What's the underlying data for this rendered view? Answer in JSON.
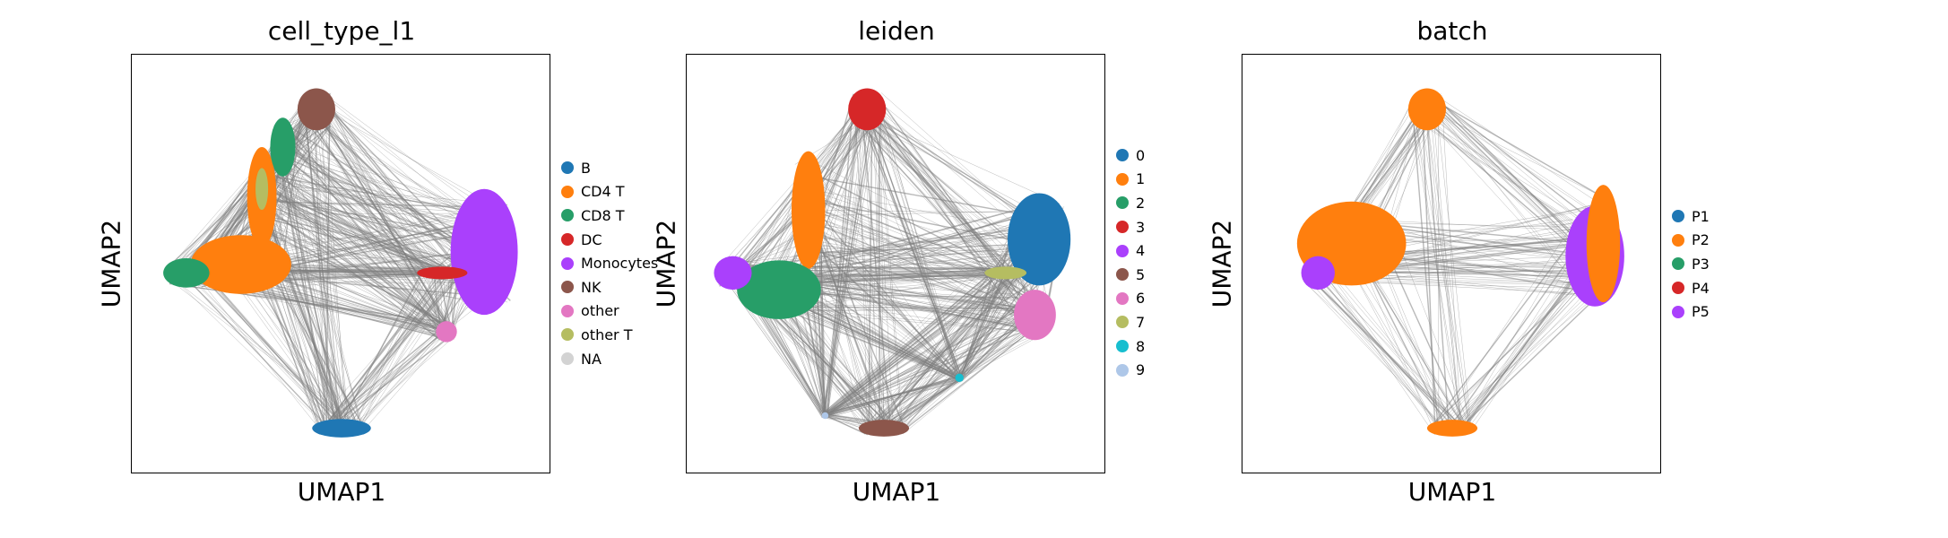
{
  "chart_data": [
    {
      "type": "scatter",
      "title": "cell_type_l1",
      "xlabel": "UMAP1",
      "ylabel": "UMAP2",
      "grid": false,
      "legend_position": "right",
      "categories": [
        "B",
        "CD4 T",
        "CD8 T",
        "DC",
        "Monocytes",
        "NK",
        "other",
        "other T",
        "NA"
      ],
      "colors": [
        "#1f77b4",
        "#ff7f0e",
        "#279e68",
        "#d62728",
        "#aa40fc",
        "#8c564b",
        "#e377c2",
        "#b5bd61",
        "#d3d3d3"
      ],
      "clusters": [
        {
          "name": "B",
          "x": 0.5,
          "y": 0.11,
          "rx": 0.07,
          "ry": 0.022,
          "color": "#1f77b4"
        },
        {
          "name": "NK",
          "x": 0.44,
          "y": 0.87,
          "rx": 0.045,
          "ry": 0.05,
          "color": "#8c564b"
        },
        {
          "name": "CD4 T",
          "x": 0.26,
          "y": 0.5,
          "rx": 0.12,
          "ry": 0.07,
          "color": "#ff7f0e"
        },
        {
          "name": "CD4 T",
          "x": 0.31,
          "y": 0.66,
          "rx": 0.035,
          "ry": 0.12,
          "color": "#ff7f0e"
        },
        {
          "name": "CD8 T",
          "x": 0.13,
          "y": 0.48,
          "rx": 0.055,
          "ry": 0.035,
          "color": "#279e68"
        },
        {
          "name": "CD8 T",
          "x": 0.36,
          "y": 0.78,
          "rx": 0.03,
          "ry": 0.07,
          "color": "#279e68"
        },
        {
          "name": "other T",
          "x": 0.31,
          "y": 0.68,
          "rx": 0.015,
          "ry": 0.05,
          "color": "#b5bd61"
        },
        {
          "name": "Monocytes",
          "x": 0.84,
          "y": 0.53,
          "rx": 0.08,
          "ry": 0.15,
          "color": "#aa40fc"
        },
        {
          "name": "DC",
          "x": 0.74,
          "y": 0.48,
          "rx": 0.06,
          "ry": 0.015,
          "color": "#d62728"
        },
        {
          "name": "other",
          "x": 0.75,
          "y": 0.34,
          "rx": 0.025,
          "ry": 0.025,
          "color": "#e377c2"
        }
      ]
    },
    {
      "type": "scatter",
      "title": "leiden",
      "xlabel": "UMAP1",
      "ylabel": "UMAP2",
      "grid": false,
      "legend_position": "right",
      "categories": [
        "0",
        "1",
        "2",
        "3",
        "4",
        "5",
        "6",
        "7",
        "8",
        "9"
      ],
      "colors": [
        "#1f77b4",
        "#ff7f0e",
        "#279e68",
        "#d62728",
        "#aa40fc",
        "#8c564b",
        "#e377c2",
        "#b5bd61",
        "#17becf",
        "#aec7e8"
      ],
      "clusters": [
        {
          "name": "0",
          "x": 0.84,
          "y": 0.56,
          "rx": 0.075,
          "ry": 0.11,
          "color": "#1f77b4"
        },
        {
          "name": "1",
          "x": 0.29,
          "y": 0.63,
          "rx": 0.04,
          "ry": 0.14,
          "color": "#ff7f0e"
        },
        {
          "name": "2",
          "x": 0.22,
          "y": 0.44,
          "rx": 0.1,
          "ry": 0.07,
          "color": "#279e68"
        },
        {
          "name": "3",
          "x": 0.43,
          "y": 0.87,
          "rx": 0.045,
          "ry": 0.05,
          "color": "#d62728"
        },
        {
          "name": "4",
          "x": 0.11,
          "y": 0.48,
          "rx": 0.045,
          "ry": 0.04,
          "color": "#aa40fc"
        },
        {
          "name": "5",
          "x": 0.47,
          "y": 0.11,
          "rx": 0.06,
          "ry": 0.02,
          "color": "#8c564b"
        },
        {
          "name": "6",
          "x": 0.83,
          "y": 0.38,
          "rx": 0.05,
          "ry": 0.06,
          "color": "#e377c2"
        },
        {
          "name": "7",
          "x": 0.76,
          "y": 0.48,
          "rx": 0.05,
          "ry": 0.015,
          "color": "#b5bd61"
        },
        {
          "name": "8",
          "x": 0.65,
          "y": 0.23,
          "rx": 0.01,
          "ry": 0.01,
          "color": "#17becf"
        },
        {
          "name": "9",
          "x": 0.33,
          "y": 0.14,
          "rx": 0.008,
          "ry": 0.008,
          "color": "#aec7e8"
        }
      ]
    },
    {
      "type": "scatter",
      "title": "batch",
      "xlabel": "UMAP1",
      "ylabel": "UMAP2",
      "grid": false,
      "legend_position": "right",
      "categories": [
        "P1",
        "P2",
        "P3",
        "P4",
        "P5"
      ],
      "colors": [
        "#1f77b4",
        "#ff7f0e",
        "#279e68",
        "#d62728",
        "#aa40fc"
      ],
      "clusters": [
        {
          "name": "P2",
          "x": 0.26,
          "y": 0.55,
          "rx": 0.13,
          "ry": 0.1,
          "color": "#ff7f0e"
        },
        {
          "name": "P2",
          "x": 0.44,
          "y": 0.87,
          "rx": 0.045,
          "ry": 0.05,
          "color": "#ff7f0e"
        },
        {
          "name": "P2",
          "x": 0.5,
          "y": 0.11,
          "rx": 0.06,
          "ry": 0.02,
          "color": "#ff7f0e"
        },
        {
          "name": "P5",
          "x": 0.84,
          "y": 0.52,
          "rx": 0.07,
          "ry": 0.12,
          "color": "#aa40fc"
        },
        {
          "name": "P2",
          "x": 0.86,
          "y": 0.55,
          "rx": 0.04,
          "ry": 0.14,
          "color": "#ff7f0e"
        },
        {
          "name": "P5",
          "x": 0.18,
          "y": 0.48,
          "rx": 0.04,
          "ry": 0.04,
          "color": "#aa40fc"
        }
      ]
    }
  ]
}
